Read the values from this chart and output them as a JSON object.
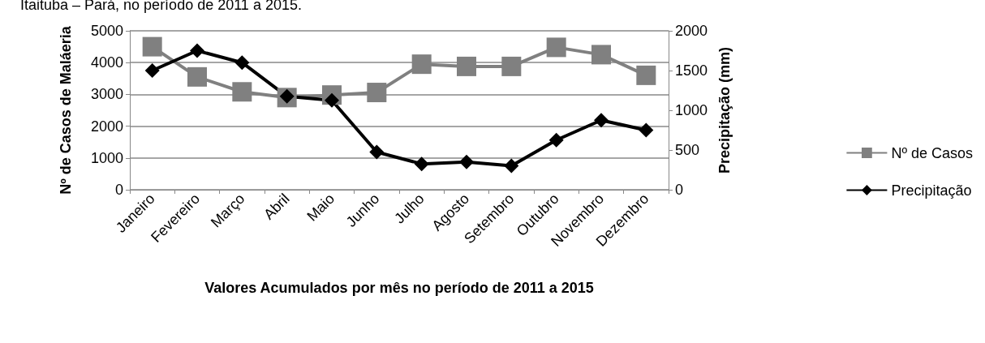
{
  "chart_data": {
    "type": "line",
    "title": "Itaituba – Pará, no período de 2011 a 2015.",
    "xlabel": "Valores Acumulados por mês no período de 2011 a 2015",
    "ylabel": "Nº de Casos de Maláeria",
    "y2label": "Precipitação (mm)",
    "categories": [
      "Janeiro",
      "Fevereiro",
      "Março",
      "Abril",
      "Maio",
      "Junho",
      "Julho",
      "Agosto",
      "Setembro",
      "Outubro",
      "Novembro",
      "Dezembro"
    ],
    "series": [
      {
        "name": "Nº de Casos",
        "color": "#808080",
        "marker": "square",
        "values": [
          4500,
          3550,
          3080,
          2900,
          2980,
          3060,
          3950,
          3880,
          3880,
          4480,
          4250,
          3600
        ]
      },
      {
        "name": "Precipitação",
        "color": "#000000",
        "marker": "diamond",
        "axis": "y2",
        "values": [
          1500,
          1750,
          1600,
          1175,
          1125,
          475,
          325,
          350,
          300,
          625,
          875,
          750
        ]
      }
    ],
    "ylim": [
      0,
      5000
    ],
    "yticks": [
      0,
      1000,
      2000,
      3000,
      4000,
      5000
    ],
    "y2lim": [
      0,
      2000
    ],
    "y2ticks": [
      0,
      500,
      1000,
      1500,
      2000
    ],
    "grid": "y",
    "legend": "right"
  }
}
